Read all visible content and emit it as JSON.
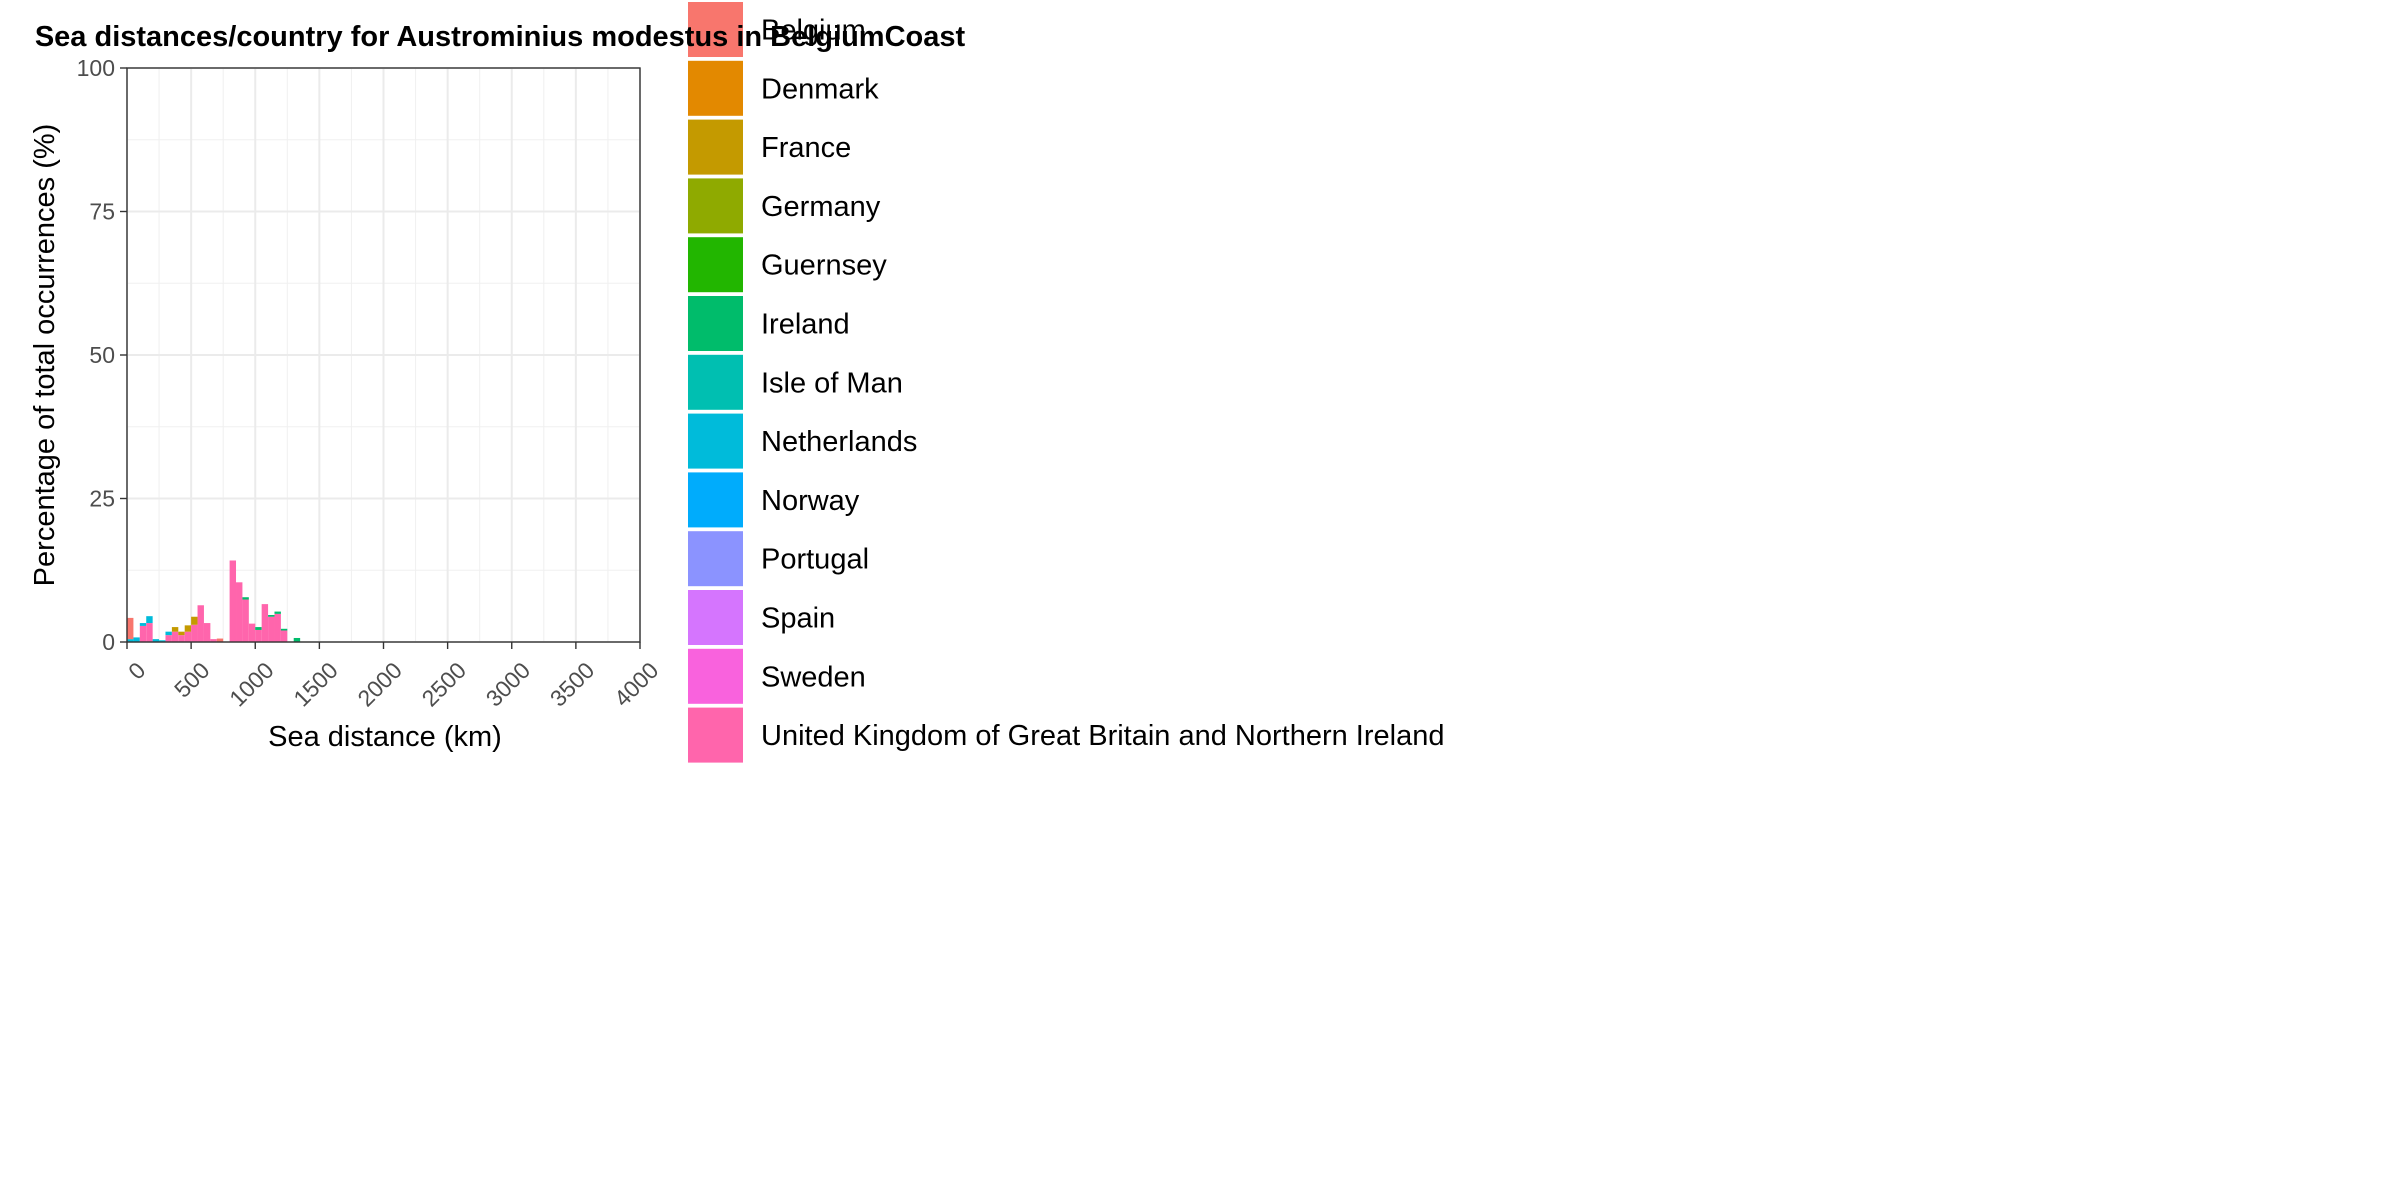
{
  "chart_data": {
    "type": "bar",
    "stacked": true,
    "title": "Sea distances/country for Austrominius modestus in BelgiumCoast",
    "xlabel": "Sea distance (km)",
    "ylabel": "Percentage of total occurrences (%)",
    "xlim": [
      0,
      4000
    ],
    "ylim": [
      0,
      100
    ],
    "x_ticks": [
      "0",
      "500",
      "1000",
      "1500",
      "2000",
      "2500",
      "3000",
      "3500",
      "4000"
    ],
    "y_ticks": [
      "0",
      "25",
      "50",
      "75",
      "100"
    ],
    "grid": true,
    "bin_width_km": 50,
    "legend_position": "right",
    "legend": [
      {
        "name": "Belgium",
        "color": "#F8766D"
      },
      {
        "name": "Denmark",
        "color": "#E38900"
      },
      {
        "name": "France",
        "color": "#C49A00"
      },
      {
        "name": "Germany",
        "color": "#8FAA00"
      },
      {
        "name": "Guernsey",
        "color": "#22B600"
      },
      {
        "name": "Ireland",
        "color": "#00BC6B"
      },
      {
        "name": "Isle of Man",
        "color": "#00BFB1"
      },
      {
        "name": "Netherlands",
        "color": "#00BBDA"
      },
      {
        "name": "Norway",
        "color": "#00ACFC"
      },
      {
        "name": "Portugal",
        "color": "#8B93FF"
      },
      {
        "name": "Spain",
        "color": "#D575FE"
      },
      {
        "name": "Sweden",
        "color": "#F962DD"
      },
      {
        "name": "United Kingdom of Great Britain and Northern Ireland",
        "color": "#FF65AC"
      }
    ],
    "bars": [
      {
        "x": 0,
        "stack": [
          {
            "country": "Netherlands",
            "value": 0.5
          },
          {
            "country": "Belgium",
            "value": 3.7
          }
        ]
      },
      {
        "x": 50,
        "stack": [
          {
            "country": "Netherlands",
            "value": 0.8
          }
        ]
      },
      {
        "x": 100,
        "stack": [
          {
            "country": "United Kingdom of Great Britain and Northern Ireland",
            "value": 2.8
          },
          {
            "country": "Netherlands",
            "value": 0.5
          }
        ]
      },
      {
        "x": 150,
        "stack": [
          {
            "country": "United Kingdom of Great Britain and Northern Ireland",
            "value": 3.3
          },
          {
            "country": "Netherlands",
            "value": 1.2
          }
        ]
      },
      {
        "x": 200,
        "stack": [
          {
            "country": "Netherlands",
            "value": 0.5
          }
        ]
      },
      {
        "x": 250,
        "stack": [
          {
            "country": "Netherlands",
            "value": 0.3
          }
        ]
      },
      {
        "x": 300,
        "stack": [
          {
            "country": "United Kingdom of Great Britain and Northern Ireland",
            "value": 1.2
          },
          {
            "country": "Netherlands",
            "value": 0.6
          }
        ]
      },
      {
        "x": 350,
        "stack": [
          {
            "country": "United Kingdom of Great Britain and Northern Ireland",
            "value": 1.8
          },
          {
            "country": "France",
            "value": 0.8
          }
        ]
      },
      {
        "x": 400,
        "stack": [
          {
            "country": "United Kingdom of Great Britain and Northern Ireland",
            "value": 1.2
          },
          {
            "country": "France",
            "value": 0.6
          }
        ]
      },
      {
        "x": 450,
        "stack": [
          {
            "country": "United Kingdom of Great Britain and Northern Ireland",
            "value": 1.8
          },
          {
            "country": "France",
            "value": 1.1
          }
        ]
      },
      {
        "x": 500,
        "stack": [
          {
            "country": "United Kingdom of Great Britain and Northern Ireland",
            "value": 3.0
          },
          {
            "country": "France",
            "value": 1.4
          }
        ]
      },
      {
        "x": 550,
        "stack": [
          {
            "country": "United Kingdom of Great Britain and Northern Ireland",
            "value": 6.4
          }
        ]
      },
      {
        "x": 600,
        "stack": [
          {
            "country": "United Kingdom of Great Britain and Northern Ireland",
            "value": 3.3
          }
        ]
      },
      {
        "x": 650,
        "stack": [
          {
            "country": "United Kingdom of Great Britain and Northern Ireland",
            "value": 0.5
          }
        ]
      },
      {
        "x": 700,
        "stack": [
          {
            "country": "Belgium",
            "value": 0.6
          }
        ]
      },
      {
        "x": 800,
        "stack": [
          {
            "country": "United Kingdom of Great Britain and Northern Ireland",
            "value": 14.2
          }
        ]
      },
      {
        "x": 850,
        "stack": [
          {
            "country": "United Kingdom of Great Britain and Northern Ireland",
            "value": 10.4
          }
        ]
      },
      {
        "x": 900,
        "stack": [
          {
            "country": "United Kingdom of Great Britain and Northern Ireland",
            "value": 7.4
          },
          {
            "country": "Ireland",
            "value": 0.4
          }
        ]
      },
      {
        "x": 950,
        "stack": [
          {
            "country": "United Kingdom of Great Britain and Northern Ireland",
            "value": 3.2
          }
        ]
      },
      {
        "x": 1000,
        "stack": [
          {
            "country": "United Kingdom of Great Britain and Northern Ireland",
            "value": 2.1
          },
          {
            "country": "Ireland",
            "value": 0.5
          }
        ]
      },
      {
        "x": 1050,
        "stack": [
          {
            "country": "United Kingdom of Great Britain and Northern Ireland",
            "value": 6.6
          }
        ]
      },
      {
        "x": 1100,
        "stack": [
          {
            "country": "United Kingdom of Great Britain and Northern Ireland",
            "value": 4.4
          },
          {
            "country": "Ireland",
            "value": 0.3
          }
        ]
      },
      {
        "x": 1150,
        "stack": [
          {
            "country": "United Kingdom of Great Britain and Northern Ireland",
            "value": 4.9
          },
          {
            "country": "Ireland",
            "value": 0.4
          }
        ]
      },
      {
        "x": 1200,
        "stack": [
          {
            "country": "United Kingdom of Great Britain and Northern Ireland",
            "value": 2.0
          },
          {
            "country": "Ireland",
            "value": 0.3
          }
        ]
      },
      {
        "x": 1300,
        "stack": [
          {
            "country": "Ireland",
            "value": 0.7
          }
        ]
      }
    ]
  }
}
